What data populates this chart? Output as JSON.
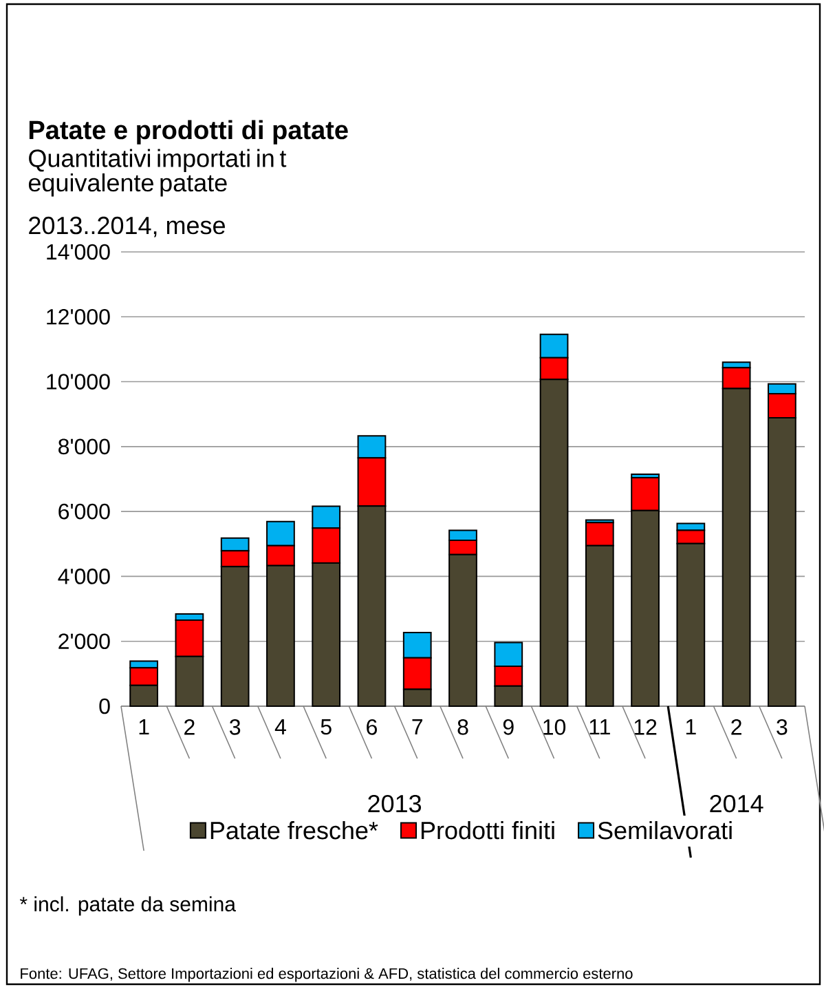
{
  "chart_data": {
    "type": "bar",
    "stacked": true,
    "title": "Patate e prodotti di patate",
    "subtitle": "Quantitativi importati in t equivalente patate",
    "categories": [
      "1",
      "2",
      "3",
      "4",
      "5",
      "6",
      "7",
      "8",
      "9",
      "10",
      "11",
      "12",
      "1",
      "2",
      "3"
    ],
    "series": [
      {
        "name": "Patate fresche*",
        "color": "#4b4630",
        "values": [
          640,
          1530,
          4300,
          4330,
          4410,
          6170,
          520,
          4670,
          620,
          10070,
          4950,
          6030,
          5010,
          9790,
          8890
        ]
      },
      {
        "name": "Prodotti finiti",
        "color": "#ff0000",
        "values": [
          540,
          1120,
          490,
          620,
          1080,
          1480,
          970,
          440,
          610,
          670,
          710,
          1010,
          410,
          640,
          740
        ]
      },
      {
        "name": "Semilavorati",
        "color": "#00b0f0",
        "values": [
          210,
          190,
          390,
          740,
          670,
          680,
          780,
          310,
          730,
          720,
          80,
          110,
          210,
          170,
          300
        ]
      }
    ],
    "ylim": [
      0,
      14000
    ],
    "yticks": [
      0,
      {
        "value": 2000,
        "label": "2'000"
      },
      {
        "value": 4000,
        "label": "4'000"
      },
      {
        "value": 6000,
        "label": "6'000"
      },
      {
        "value": 8000,
        "label": "8'000"
      },
      {
        "value": 10000,
        "label": "10'000"
      },
      {
        "value": 12000,
        "label": "12'000"
      },
      {
        "value": 14000,
        "label": "14'000"
      }
    ],
    "grid": "y",
    "legend": "bottom",
    "annotations": [
      "2013..2014, mese",
      "2013",
      "2014",
      "* incl. patate da semina",
      "Fonte: UFAG, Settore Importazioni ed esportazioni & AFD, statistica del commercio esterno"
    ]
  }
}
